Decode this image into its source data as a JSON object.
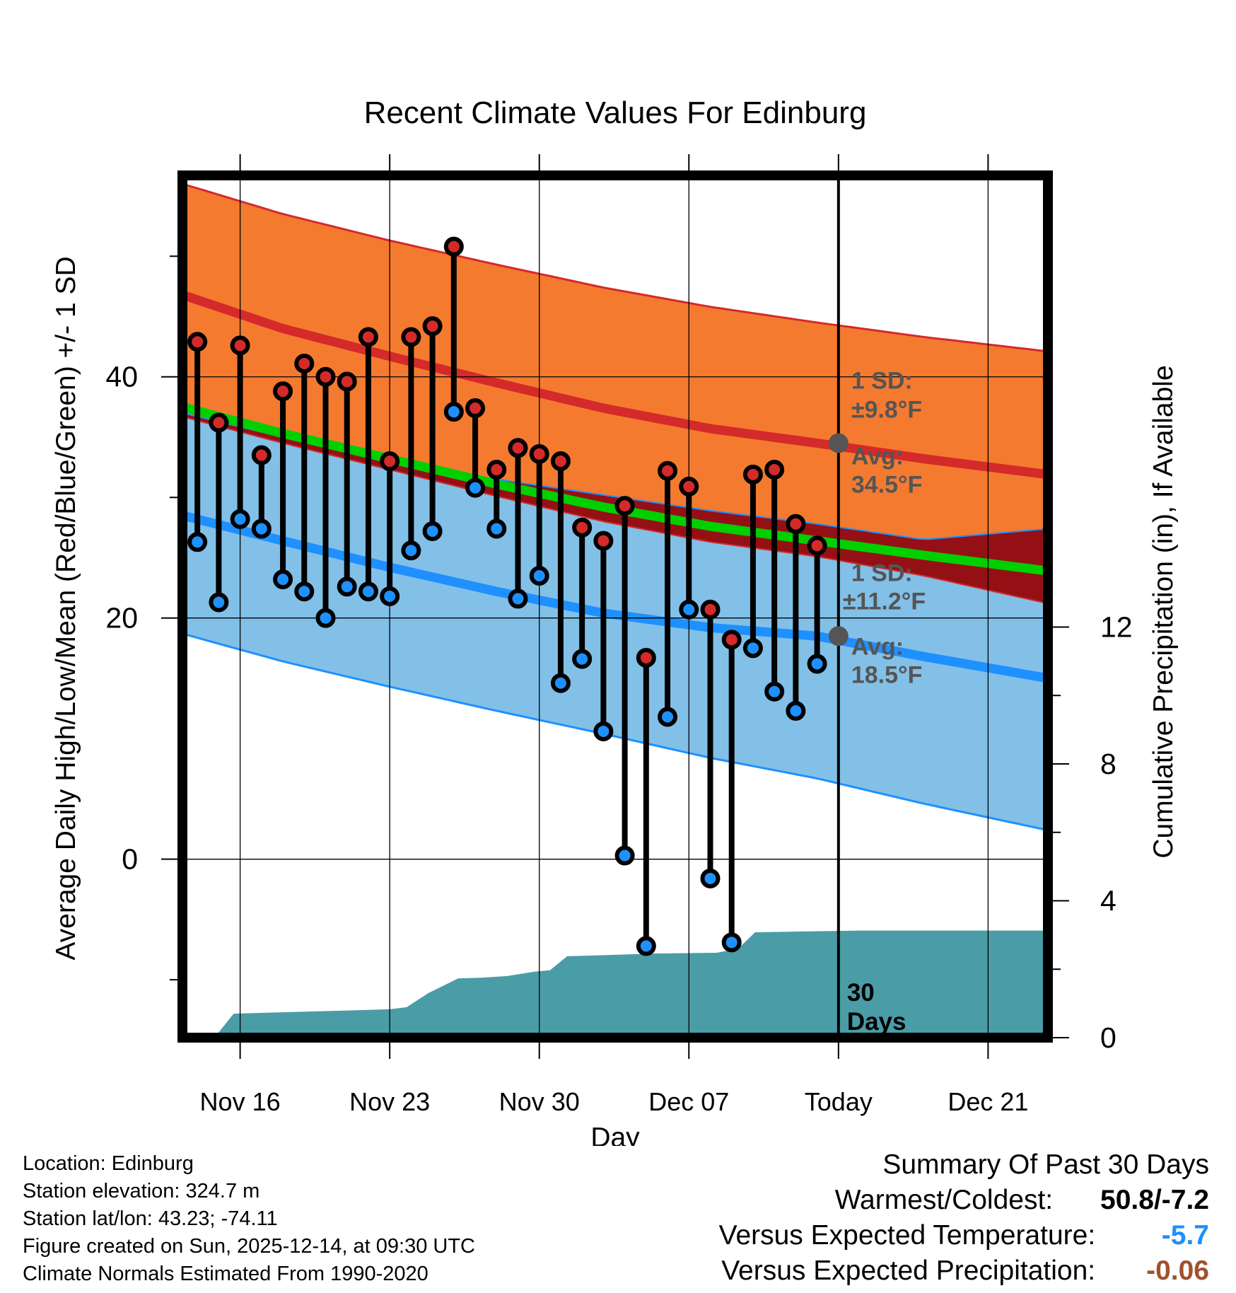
{
  "chart_data": {
    "type": "line",
    "title": "Recent Climate Values For Edinburg",
    "xlabel": "Day",
    "ylabel": "Average Daily High/Low/Mean (Red/Blue/Green) +/- 1 SD",
    "y2label": "Cumulative Precipitation (in), If Available",
    "x_tick_labels": [
      "Nov 16",
      "Nov 23",
      "Nov 30",
      "Dec 07",
      "Today",
      "Dec 21"
    ],
    "x_tick_days": [
      2,
      9,
      16,
      23,
      30,
      37
    ],
    "x_range": [
      -0.7,
      39.8
    ],
    "y_ticks": [
      "0",
      "20",
      "40"
    ],
    "y_tick_values": [
      0,
      20,
      40
    ],
    "ylim": [
      -14.8,
      56.7
    ],
    "y2_ticks": [
      "0",
      "4",
      "8",
      "12"
    ],
    "y2_tick_values": [
      0,
      4,
      8,
      12
    ],
    "y2lim": [
      0,
      25.2
    ],
    "normals_band_days": [
      -0.7,
      4,
      9,
      14,
      19,
      24,
      29,
      34,
      39.8
    ],
    "normal_high_upper": [
      56.0,
      53.5,
      51.3,
      49.3,
      47.4,
      45.8,
      44.5,
      43.3,
      42.1
    ],
    "normal_high": [
      46.8,
      44.0,
      41.7,
      39.5,
      37.4,
      35.7,
      34.5,
      33.2,
      31.9
    ],
    "normal_high_lower": [
      37.0,
      35.0,
      33.0,
      31.5,
      30.2,
      28.9,
      27.8,
      26.5,
      27.4
    ],
    "normal_mean": [
      37.5,
      35.3,
      33.2,
      31.1,
      29.2,
      27.6,
      26.4,
      25.2,
      23.9
    ],
    "normal_low_upper": [
      36.7,
      34.5,
      32.3,
      30.1,
      28.0,
      26.3,
      25.1,
      23.5,
      21.2
    ],
    "normal_low": [
      28.5,
      26.4,
      24.2,
      22.2,
      20.4,
      19.2,
      18.5,
      16.8,
      15.0
    ],
    "normal_low_lower": [
      18.7,
      16.4,
      14.3,
      12.3,
      10.4,
      8.4,
      6.7,
      4.6,
      2.4
    ],
    "obs_days": [
      0,
      1,
      2,
      3,
      4,
      5,
      6,
      7,
      8,
      9,
      10,
      11,
      12,
      13,
      14,
      15,
      16,
      17,
      18,
      19,
      20,
      21,
      22,
      23,
      24,
      25,
      26,
      27,
      28,
      29
    ],
    "obs_high": [
      42.9,
      36.2,
      42.6,
      33.5,
      38.8,
      41.1,
      40.0,
      39.6,
      43.3,
      33.0,
      43.3,
      44.2,
      50.8,
      37.4,
      32.3,
      34.1,
      33.6,
      33.0,
      27.5,
      26.4,
      29.3,
      16.7,
      32.2,
      30.9,
      20.7,
      18.2,
      31.9,
      32.3,
      27.8,
      26.0
    ],
    "obs_low": [
      26.3,
      21.3,
      28.2,
      27.4,
      23.2,
      22.2,
      20.0,
      22.6,
      22.2,
      21.8,
      25.6,
      27.2,
      37.1,
      30.8,
      27.4,
      21.6,
      23.5,
      14.6,
      16.6,
      10.6,
      0.3,
      -7.2,
      11.8,
      20.7,
      -1.6,
      -6.9,
      17.5,
      13.9,
      12.3,
      16.2
    ],
    "precip_days": [
      0,
      0.8,
      1.7,
      9,
      9.8,
      10.8,
      12.2,
      13.3,
      14.5,
      15.8,
      16.5,
      17.3,
      18.5,
      21.5,
      24.3,
      25.3,
      26.1,
      31,
      39.8
    ],
    "precip_cum": [
      0,
      0,
      0.7,
      0.83,
      0.89,
      1.3,
      1.73,
      1.75,
      1.8,
      1.93,
      1.97,
      2.38,
      2.4,
      2.46,
      2.48,
      2.6,
      3.08,
      3.13,
      3.13
    ],
    "annotations": {
      "high_sd_label": "1 SD:",
      "high_sd_value": "±9.8°F",
      "high_avg_label": "Avg:",
      "high_avg_value": "34.5°F",
      "high_avg": 34.5,
      "low_sd_label": "1 SD:",
      "low_sd_value": "±11.2°F",
      "low_avg_label": "Avg:",
      "low_avg_value": "18.5°F",
      "low_avg": 18.5,
      "window_label_1": "30",
      "window_label_2": "Days"
    },
    "colors": {
      "high_band": "#f47a30",
      "high_line": "#d42a2a",
      "low_band": "#82c0e8",
      "low_line": "#1e90ff",
      "mean_line": "#00d000",
      "overlap": "#951015",
      "precip": "#4a9ca6",
      "high_marker": "#d42a2a",
      "low_marker": "#1e90ff",
      "annotation": "#555555"
    }
  },
  "footer": {
    "location": "Location: Edinburg",
    "elevation": "Station elevation: 324.7 m",
    "latlon": "Station lat/lon: 43.23; -74.11",
    "created": "Figure created on Sun, 2025-12-14, at 09:30 UTC",
    "normals": "Climate Normals Estimated From 1990-2020"
  },
  "summary": {
    "title": "Summary Of Past 30 Days",
    "warmest_label": "Warmest/Coldest:",
    "warmest_value": "50.8/-7.2",
    "temp_label": "Versus Expected Temperature:",
    "temp_value": "-5.7",
    "temp_color": "#1e90ff",
    "precip_label": "Versus Expected Precipitation:",
    "precip_value": "-0.06",
    "precip_color": "#a0522d"
  }
}
